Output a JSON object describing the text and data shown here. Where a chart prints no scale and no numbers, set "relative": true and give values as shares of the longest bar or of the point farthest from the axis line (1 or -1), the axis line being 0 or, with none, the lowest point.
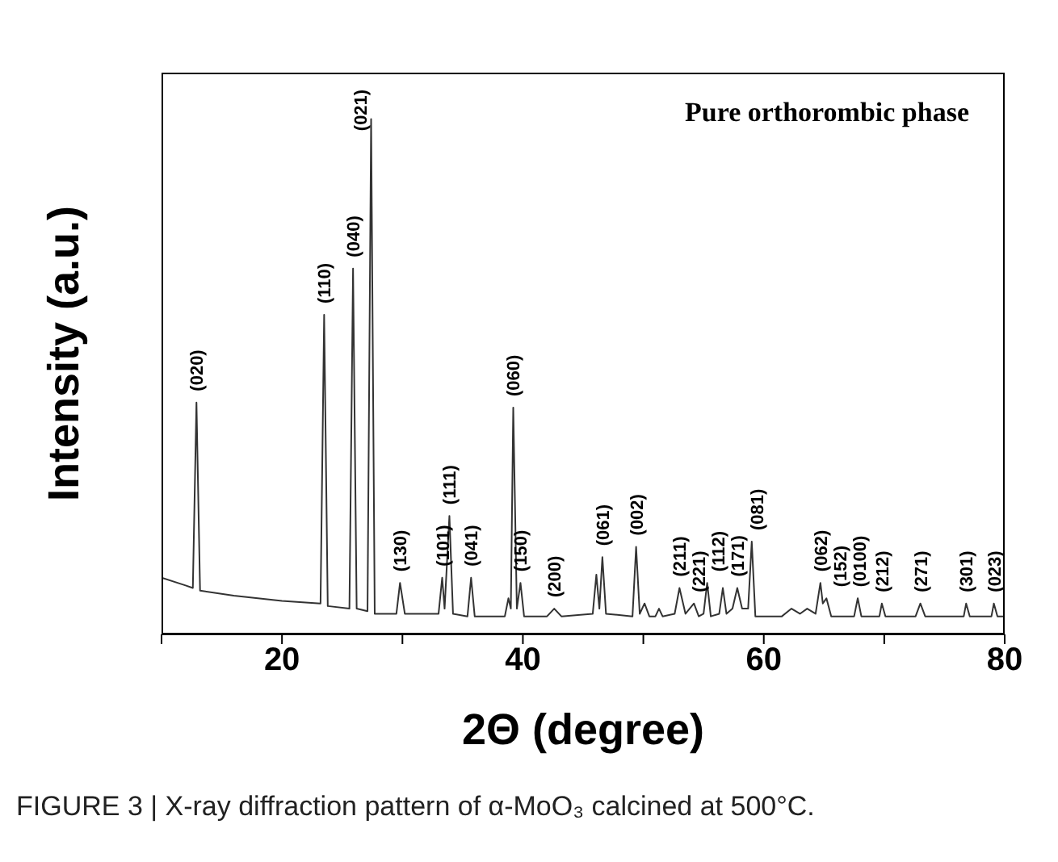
{
  "chart_data": {
    "type": "line",
    "relative": true,
    "xlabel": "2Θ (degree)",
    "ylabel": "Intensity (a.u.)",
    "xlim": [
      10,
      80
    ],
    "xticks": [
      {
        "value": 10,
        "label": null
      },
      20,
      {
        "value": 30,
        "label": null
      },
      40,
      {
        "value": 50,
        "label": null
      },
      60,
      {
        "value": 70,
        "label": null
      },
      80
    ],
    "marker": "none",
    "series": [
      {
        "color": "#333333",
        "x": [
          10,
          12,
          12.6,
          12.9,
          13.2,
          16,
          20,
          23.2,
          23.5,
          23.8,
          25.6,
          25.9,
          26.2,
          27.1,
          27.4,
          27.7,
          29.5,
          29.8,
          30.2,
          33.0,
          33.3,
          33.5,
          33.9,
          34.2,
          35.4,
          35.7,
          36.0,
          38.5,
          38.8,
          39.0,
          39.2,
          39.5,
          39.8,
          40.1,
          42.0,
          42.6,
          43.2,
          45.8,
          46.1,
          46.35,
          46.6,
          46.9,
          49.1,
          49.4,
          49.7,
          50.1,
          50.5,
          51.0,
          51.3,
          51.6,
          52.6,
          53.0,
          53.5,
          54.2,
          54.6,
          55.0,
          55.3,
          55.6,
          56.3,
          56.6,
          56.9,
          57.4,
          57.8,
          58.2,
          58.7,
          59.0,
          59.3,
          61.5,
          62.3,
          63.0,
          63.6,
          64.3,
          64.7,
          64.9,
          65.2,
          65.6,
          67.5,
          67.8,
          68.1,
          69.6,
          69.8,
          70.1,
          72.6,
          73.0,
          73.4,
          76.6,
          76.8,
          77.1,
          78.9,
          79.1,
          79.4,
          80
        ],
        "values": [
          0.11,
          0.095,
          0.09,
          0.45,
          0.085,
          0.075,
          0.065,
          0.06,
          0.62,
          0.055,
          0.05,
          0.71,
          0.05,
          0.045,
          1.0,
          0.04,
          0.04,
          0.1,
          0.04,
          0.04,
          0.11,
          0.05,
          0.23,
          0.04,
          0.035,
          0.11,
          0.035,
          0.035,
          0.07,
          0.05,
          0.44,
          0.05,
          0.1,
          0.035,
          0.035,
          0.05,
          0.035,
          0.04,
          0.116,
          0.05,
          0.15,
          0.04,
          0.035,
          0.17,
          0.04,
          0.06,
          0.035,
          0.035,
          0.05,
          0.035,
          0.04,
          0.09,
          0.04,
          0.06,
          0.035,
          0.04,
          0.1,
          0.035,
          0.04,
          0.09,
          0.04,
          0.05,
          0.09,
          0.05,
          0.05,
          0.18,
          0.035,
          0.035,
          0.05,
          0.04,
          0.05,
          0.04,
          0.1,
          0.06,
          0.07,
          0.035,
          0.035,
          0.07,
          0.035,
          0.035,
          0.06,
          0.035,
          0.035,
          0.06,
          0.035,
          0.035,
          0.06,
          0.035,
          0.035,
          0.06,
          0.035,
          0.035
        ]
      }
    ],
    "annotations": [
      "Pure orthorombic phase",
      "FIGURE 3 | X-ray diffraction pattern of α-MoO₃ calcined at 500°C.",
      {
        "text": "(020)",
        "x": 12.9,
        "y": 0.45
      },
      {
        "text": "(110)",
        "x": 23.5,
        "y": 0.62
      },
      {
        "text": "(040)",
        "x": 25.9,
        "y": 0.71
      },
      {
        "text": "(021)",
        "x": 27.4,
        "y": 1.0
      },
      {
        "text": "(130)",
        "x": 29.8,
        "y": 0.1
      },
      {
        "text": "(101)",
        "x": 33.3,
        "y": 0.11
      },
      {
        "text": "(111)",
        "x": 33.9,
        "y": 0.23
      },
      {
        "text": "(041)",
        "x": 35.7,
        "y": 0.11
      },
      {
        "text": "(060)",
        "x": 39.2,
        "y": 0.44
      },
      {
        "text": "(150)",
        "x": 39.8,
        "y": 0.1
      },
      {
        "text": "(200)",
        "x": 42.6,
        "y": 0.05
      },
      {
        "text": "(061)",
        "x": 46.6,
        "y": 0.15
      },
      {
        "text": "(002)",
        "x": 49.4,
        "y": 0.17
      },
      {
        "text": "(211)",
        "x": 53.0,
        "y": 0.09
      },
      {
        "text": "(221)",
        "x": 54.2,
        "y": 0.06
      },
      {
        "text": "(112)",
        "x": 55.3,
        "y": 0.1
      },
      {
        "text": "(171)",
        "x": 57.8,
        "y": 0.09
      },
      {
        "text": "(081)",
        "x": 59.0,
        "y": 0.18
      },
      {
        "text": "(062)",
        "x": 64.7,
        "y": 0.1
      },
      {
        "text": "(152)",
        "x": 65.2,
        "y": 0.07
      },
      {
        "text": "(0100)",
        "x": 67.8,
        "y": 0.07
      },
      {
        "text": "(212)",
        "x": 69.8,
        "y": 0.06
      },
      {
        "text": "(271)",
        "x": 73.0,
        "y": 0.06
      },
      {
        "text": "(301)",
        "x": 76.8,
        "y": 0.06
      },
      {
        "text": "(023)",
        "x": 79.1,
        "y": 0.06
      }
    ]
  }
}
